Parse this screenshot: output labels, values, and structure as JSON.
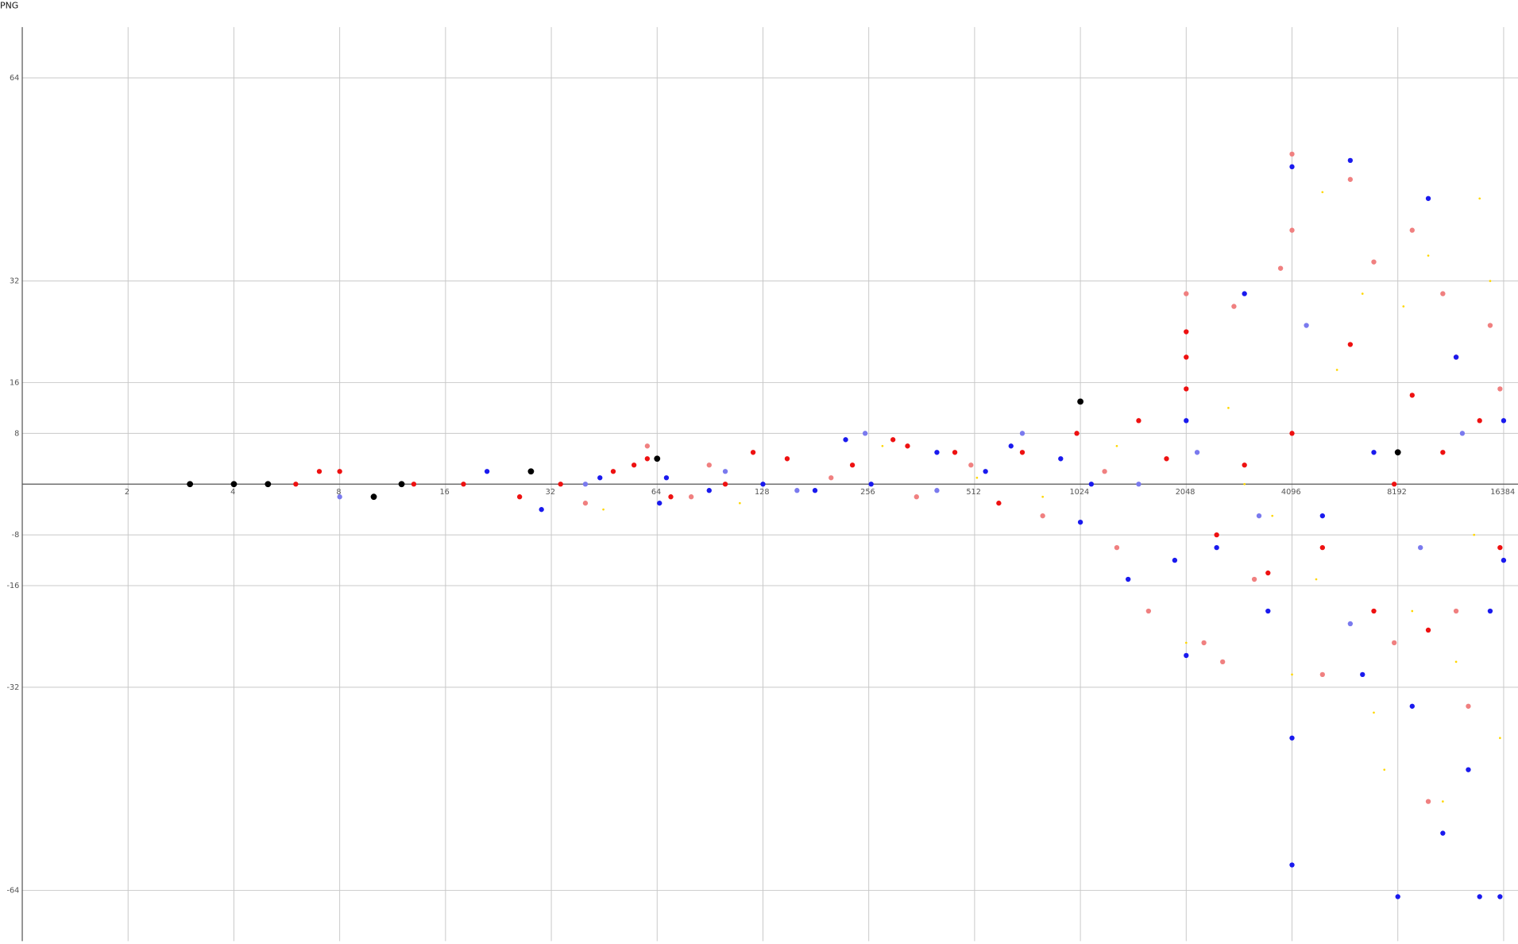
{
  "header": {
    "title": "PNG"
  },
  "chart_data": {
    "type": "scatter",
    "xscale": "log2",
    "grid": true,
    "xlim": [
      1,
      18000
    ],
    "ylim": [
      -72,
      72
    ],
    "xticks": [
      2,
      4,
      8,
      16,
      32,
      64,
      128,
      256,
      512,
      1024,
      2048,
      4096,
      8192,
      16384
    ],
    "yticks": [
      -64,
      -32,
      -16,
      -8,
      8,
      16,
      32,
      64
    ],
    "series": [
      {
        "color": "#ffd700",
        "size": 1.1,
        "x": [
          45,
          110,
          280,
          520,
          800,
          1300,
          2048,
          2700,
          3600,
          4096,
          5000,
          5500,
          7000,
          7500,
          8500,
          9000,
          10000,
          11000,
          12000,
          13500,
          15000,
          16000,
          14000,
          6500,
          4800,
          3000
        ],
        "values": [
          -4,
          -3,
          6,
          1,
          -2,
          6,
          -25,
          12,
          -5,
          -30,
          46,
          18,
          -36,
          -45,
          28,
          -20,
          36,
          -50,
          -28,
          -8,
          32,
          -40,
          45,
          30,
          -15,
          0
        ]
      },
      {
        "color": "#f08080",
        "size": 2.6,
        "x": [
          40,
          60,
          80,
          90,
          200,
          350,
          500,
          800,
          1200,
          1300,
          1600,
          2048,
          2300,
          2800,
          3200,
          4096,
          4096,
          5000,
          6000,
          7000,
          8000,
          9000,
          10000,
          11000,
          13000,
          15000,
          16000,
          2600,
          3800,
          12000
        ],
        "values": [
          -3,
          6,
          -2,
          3,
          1,
          -2,
          3,
          -5,
          2,
          -10,
          -20,
          30,
          -25,
          28,
          -15,
          52,
          40,
          -30,
          48,
          35,
          -25,
          40,
          -50,
          30,
          -35,
          25,
          15,
          -28,
          34,
          -20
        ]
      },
      {
        "color": "#7a7aee",
        "size": 2.6,
        "x": [
          8,
          40,
          100,
          160,
          250,
          400,
          700,
          1500,
          2200,
          3300,
          4500,
          6000,
          9500,
          12500
        ],
        "values": [
          -2,
          0,
          2,
          -1,
          8,
          -1,
          8,
          0,
          5,
          -5,
          25,
          -22,
          -10,
          8
        ]
      },
      {
        "color": "#ee1111",
        "size": 2.6,
        "x": [
          7,
          8,
          6,
          13,
          18,
          26,
          34,
          48,
          55,
          60,
          70,
          100,
          120,
          150,
          230,
          300,
          330,
          450,
          700,
          1000,
          1500,
          2048,
          2048,
          2048,
          3000,
          4096,
          5000,
          6000,
          7000,
          9000,
          10000,
          12000,
          14000,
          16000,
          2500,
          3500,
          11000,
          8000,
          600,
          1800
        ],
        "values": [
          2,
          2,
          0,
          0,
          0,
          -2,
          0,
          2,
          3,
          4,
          -2,
          0,
          5,
          4,
          3,
          7,
          6,
          5,
          5,
          8,
          10,
          24,
          20,
          15,
          3,
          8,
          -10,
          22,
          -20,
          14,
          -23,
          20,
          10,
          -10,
          -8,
          -14,
          5,
          0,
          -3,
          4
        ]
      },
      {
        "color": "#1a1aee",
        "size": 2.6,
        "x": [
          21,
          30,
          44,
          65,
          68,
          90,
          128,
          180,
          220,
          260,
          400,
          550,
          650,
          900,
          1024,
          1100,
          1400,
          1900,
          2048,
          2048,
          2500,
          3000,
          3500,
          4096,
          4096,
          4096,
          5000,
          6000,
          6500,
          7000,
          8192,
          9000,
          10000,
          11000,
          12000,
          13000,
          14000,
          16000,
          15000,
          16384,
          16384
        ],
        "values": [
          2,
          -4,
          1,
          -3,
          1,
          -1,
          0,
          -1,
          7,
          0,
          5,
          2,
          6,
          4,
          -6,
          0,
          -15,
          -12,
          -27,
          10,
          -10,
          30,
          -20,
          -60,
          50,
          -40,
          -5,
          51,
          -30,
          5,
          -65,
          -35,
          45,
          -55,
          20,
          -45,
          -65,
          -65,
          -20,
          10,
          -12
        ]
      },
      {
        "color": "#000000",
        "size": 3.2,
        "x": [
          3,
          4,
          5,
          12,
          10,
          28,
          64,
          1024,
          8192
        ],
        "values": [
          0,
          0,
          0,
          0,
          -2,
          2,
          4,
          13,
          5
        ]
      }
    ]
  }
}
